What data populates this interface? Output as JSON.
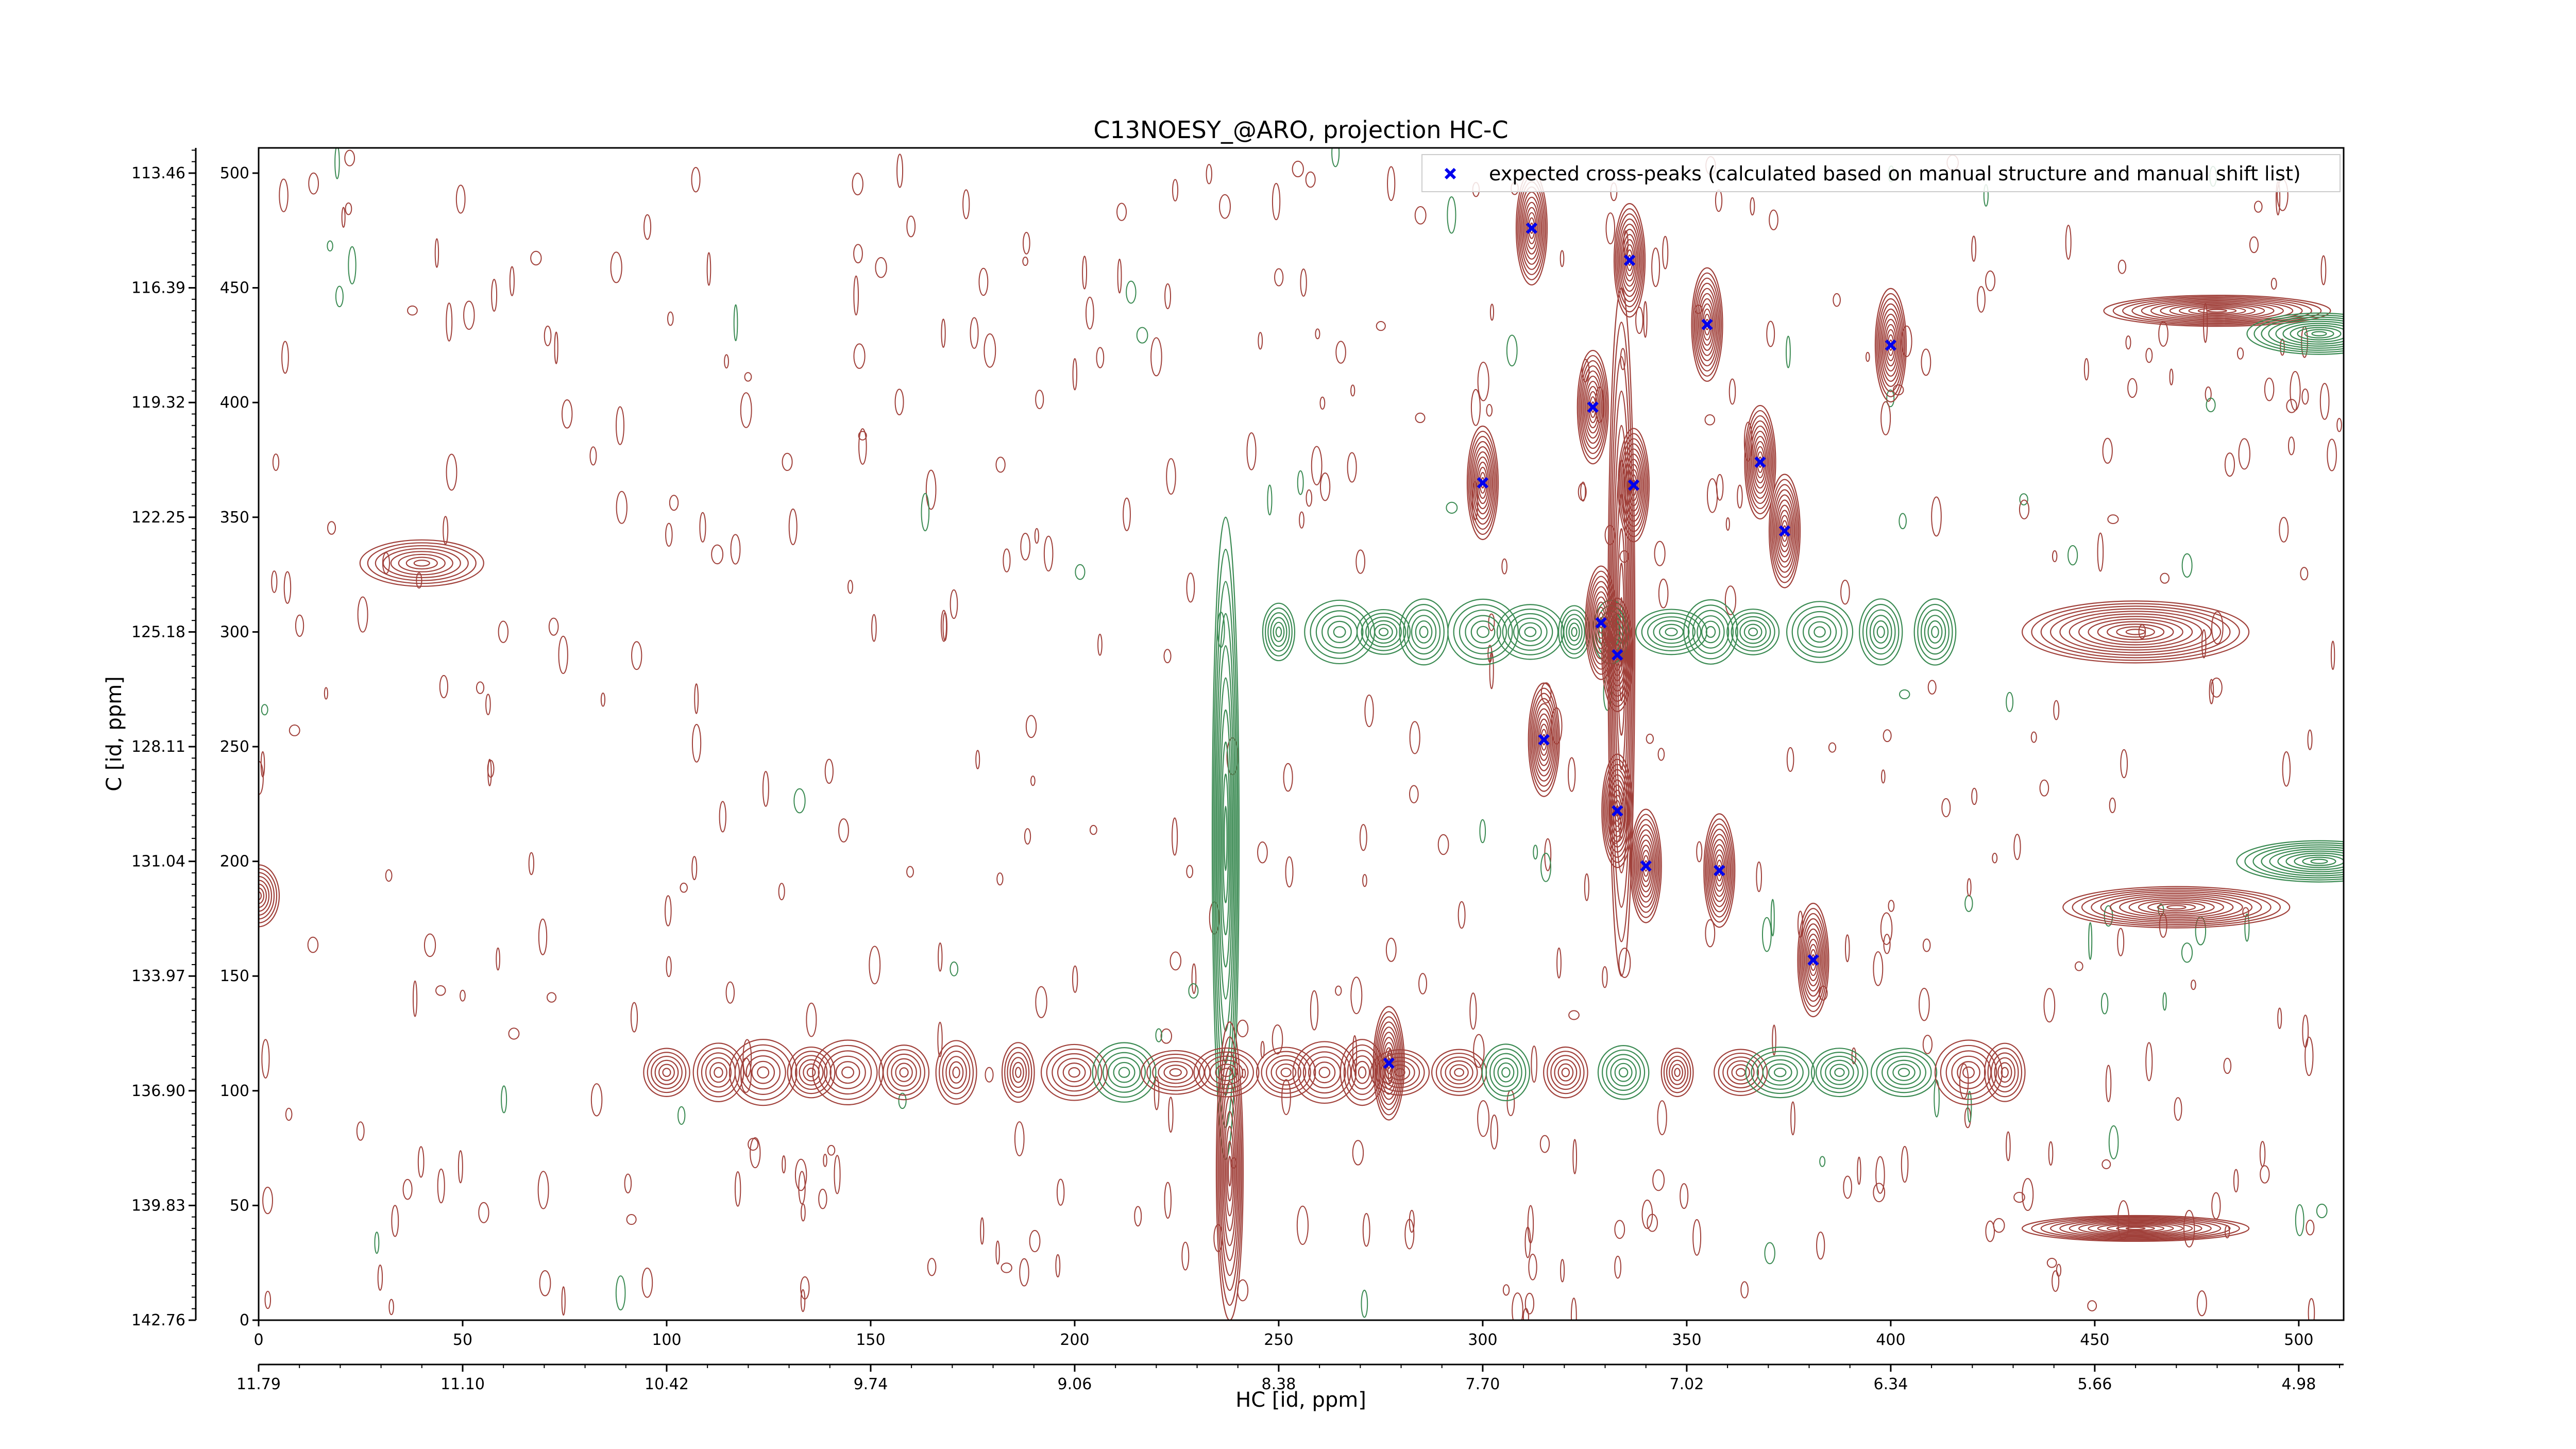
{
  "chart_data": {
    "type": "contour",
    "title": "C13NOESY_@ARO, projection HC-C",
    "xlabel": "HC [id, ppm]",
    "ylabel": "C [id, ppm]",
    "x_index_range": [
      0,
      511
    ],
    "y_index_range": [
      0,
      511
    ],
    "x_ticks": [
      0,
      50,
      100,
      150,
      200,
      250,
      300,
      350,
      400,
      450,
      500
    ],
    "y_ticks": [
      0,
      50,
      100,
      150,
      200,
      250,
      300,
      350,
      400,
      450,
      500
    ],
    "y_ppm_tick_labels": [
      {
        "index": 0,
        "label": "142.76"
      },
      {
        "index": 50,
        "label": "139.83"
      },
      {
        "index": 100,
        "label": "136.90"
      },
      {
        "index": 150,
        "label": "133.97"
      },
      {
        "index": 200,
        "label": "131.04"
      },
      {
        "index": 250,
        "label": "128.11"
      },
      {
        "index": 300,
        "label": "125.18"
      },
      {
        "index": 350,
        "label": "122.25"
      },
      {
        "index": 400,
        "label": "119.32"
      },
      {
        "index": 450,
        "label": "116.39"
      },
      {
        "index": 500,
        "label": "113.46"
      }
    ],
    "x_ppm_tick_labels": [
      {
        "index": 0,
        "label": "11.79"
      },
      {
        "index": 50,
        "label": "11.10"
      },
      {
        "index": 100,
        "label": "10.42"
      },
      {
        "index": 150,
        "label": "9.74"
      },
      {
        "index": 200,
        "label": "9.06"
      },
      {
        "index": 250,
        "label": "8.38"
      },
      {
        "index": 300,
        "label": "7.70"
      },
      {
        "index": 350,
        "label": "7.02"
      },
      {
        "index": 400,
        "label": "6.34"
      },
      {
        "index": 450,
        "label": "5.66"
      },
      {
        "index": 500,
        "label": "4.98"
      }
    ],
    "legend": {
      "position": "top-right",
      "entries": [
        {
          "label": "expected cross-peaks (calculated based on manual structure and manual shift list)",
          "color": "#0000ee",
          "marker": "x"
        }
      ]
    },
    "colors": {
      "positive": "#a0403a",
      "negative": "#3a8a52",
      "peaks": "#0000ee"
    },
    "expected_peaks": [
      {
        "x": 312,
        "y": 476
      },
      {
        "x": 336,
        "y": 462
      },
      {
        "x": 355,
        "y": 434
      },
      {
        "x": 400,
        "y": 425
      },
      {
        "x": 327,
        "y": 398
      },
      {
        "x": 368,
        "y": 374
      },
      {
        "x": 300,
        "y": 365
      },
      {
        "x": 337,
        "y": 364
      },
      {
        "x": 374,
        "y": 344
      },
      {
        "x": 329,
        "y": 304
      },
      {
        "x": 333,
        "y": 290
      },
      {
        "x": 315,
        "y": 253
      },
      {
        "x": 333,
        "y": 222
      },
      {
        "x": 340,
        "y": 198
      },
      {
        "x": 358,
        "y": 196
      },
      {
        "x": 381,
        "y": 157
      },
      {
        "x": 277,
        "y": 112
      }
    ],
    "bands": [
      {
        "kind": "vertical",
        "sign": "negative",
        "x": 237,
        "y0": 70,
        "y1": 350
      },
      {
        "kind": "vertical",
        "sign": "positive",
        "x": 238,
        "y0": 0,
        "y1": 130
      },
      {
        "kind": "vertical",
        "sign": "positive",
        "x": 334,
        "y0": 150,
        "y1": 450
      },
      {
        "kind": "horizontal",
        "sign": "positive",
        "y": 108,
        "x0": 100,
        "x1": 430
      },
      {
        "kind": "horizontal",
        "sign": "negative",
        "y": 300,
        "x0": 250,
        "x1": 420
      }
    ]
  }
}
